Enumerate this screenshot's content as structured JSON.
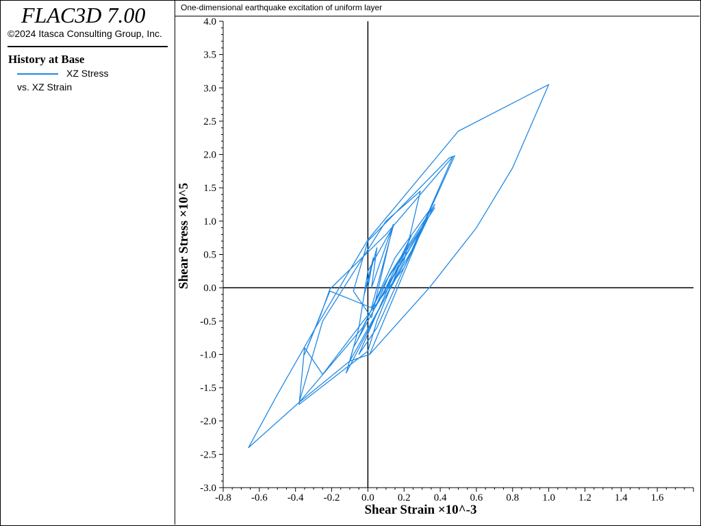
{
  "app": {
    "title": "FLAC3D 7.00",
    "copyright": "©2024 Itasca Consulting Group, Inc."
  },
  "legend": {
    "heading": "History at Base",
    "series_label": "XZ Stress",
    "vs_label": "vs. XZ Strain",
    "line_color": "#1e88e5"
  },
  "plot_title": "One-dimensional earthquake excitation of uniform layer",
  "chart_data": {
    "type": "line",
    "xlabel": "Shear Strain ×10^-3",
    "ylabel": "Shear Stress ×10^5",
    "xlim": [
      -0.8,
      1.8
    ],
    "ylim": [
      -3.0,
      4.0
    ],
    "xticks": [
      -0.8,
      -0.6,
      -0.4,
      -0.2,
      0.0,
      0.2,
      0.4,
      0.6,
      0.8,
      1.0,
      1.2,
      1.4,
      1.6
    ],
    "xtick_labels": [
      "-0.8",
      "-0.6",
      "-0.4",
      "-0.2",
      "0.0",
      "0.2",
      "0.4",
      "0.6",
      "0.8",
      "1.0",
      "1.2",
      "1.4",
      "1.6"
    ],
    "yticks": [
      -3.0,
      -2.5,
      -2.0,
      -1.5,
      -1.0,
      -0.5,
      0.0,
      0.5,
      1.0,
      1.5,
      2.0,
      2.5,
      3.0,
      3.5,
      4.0
    ],
    "ytick_labels": [
      "-3.0",
      "-2.5",
      "-2.0",
      "-1.5",
      "-1.0",
      "-0.5",
      "0.0",
      "0.5",
      "1.0",
      "1.5",
      "2.0",
      "2.5",
      "3.0",
      "3.5",
      "4.0"
    ],
    "axes_zero_lines": true,
    "series": [
      {
        "name": "XZ Stress",
        "color": "#1e88e5",
        "points": [
          [
            0.0,
            0.0
          ],
          [
            0.03,
            0.45
          ],
          [
            -0.02,
            -0.1
          ],
          [
            0.05,
            0.6
          ],
          [
            0.02,
            0.0
          ],
          [
            0.14,
            0.95
          ],
          [
            0.02,
            -0.45
          ],
          [
            -0.08,
            -0.05
          ],
          [
            0.0,
            0.7
          ],
          [
            0.45,
            1.95
          ],
          [
            0.48,
            1.98
          ],
          [
            0.25,
            0.6
          ],
          [
            -0.1,
            -1.1
          ],
          [
            -0.05,
            -0.6
          ],
          [
            0.0,
            0.25
          ],
          [
            0.14,
            0.92
          ],
          [
            0.02,
            -0.3
          ],
          [
            -0.21,
            -0.05
          ],
          [
            -0.35,
            -1.0
          ],
          [
            -0.26,
            -0.4
          ],
          [
            -0.21,
            -0.02
          ],
          [
            0.1,
            0.8
          ],
          [
            0.47,
            1.97
          ],
          [
            0.2,
            0.3
          ],
          [
            -0.25,
            -1.3
          ],
          [
            -0.35,
            -0.9
          ],
          [
            -0.38,
            -1.75
          ],
          [
            0.0,
            -0.95
          ],
          [
            0.05,
            -0.5
          ],
          [
            0.2,
            0.5
          ],
          [
            0.37,
            1.2
          ],
          [
            0.1,
            0.1
          ],
          [
            -0.03,
            -0.6
          ],
          [
            -0.38,
            -1.72
          ],
          [
            -0.25,
            -0.5
          ],
          [
            0.1,
            1.0
          ],
          [
            0.29,
            1.45
          ],
          [
            0.2,
            0.4
          ],
          [
            -0.12,
            -1.28
          ],
          [
            -0.08,
            -0.9
          ],
          [
            0.09,
            -0.05
          ],
          [
            0.24,
            0.78
          ],
          [
            0.08,
            -0.2
          ],
          [
            -0.05,
            -1.0
          ],
          [
            0.05,
            -0.6
          ],
          [
            0.2,
            0.3
          ],
          [
            0.37,
            1.25
          ],
          [
            0.12,
            0.2
          ],
          [
            0.04,
            -0.3
          ],
          [
            0.3,
            0.9
          ],
          [
            0.1,
            0.0
          ],
          [
            -0.06,
            -0.8
          ],
          [
            0.15,
            0.45
          ],
          [
            0.35,
            1.2
          ],
          [
            0.01,
            -1.0
          ],
          [
            0.34,
            0.0
          ],
          [
            0.6,
            0.9
          ],
          [
            0.8,
            1.8
          ],
          [
            1.0,
            3.05
          ],
          [
            0.5,
            2.35
          ],
          [
            0.0,
            0.72
          ],
          [
            -0.3,
            -0.65
          ],
          [
            -0.5,
            -1.6
          ],
          [
            -0.66,
            -2.4
          ],
          [
            -0.38,
            -1.72
          ],
          [
            -0.1,
            -1.1
          ],
          [
            0.01,
            -1.0
          ]
        ]
      }
    ]
  }
}
